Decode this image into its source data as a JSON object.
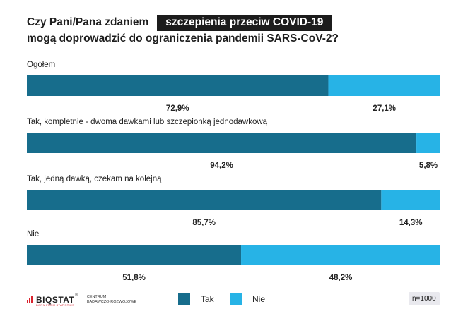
{
  "title": {
    "prefix": "Czy Pani/Pana zdaniem",
    "highlight": "szczepienia przeciw COVID-19",
    "line2": "mogą doprowadzić do ograniczenia pandemii SARS-CoV-2?"
  },
  "chart_data": {
    "type": "bar",
    "orientation": "horizontal-stacked-percent",
    "categories": [
      "Ogółem",
      "Tak, kompletnie - dwoma dawkami lub szczepionką jednodawkową",
      "Tak, jedną dawką, czekam na kolejną",
      "Nie"
    ],
    "series": [
      {
        "name": "Tak",
        "color": "#176d8c",
        "values": [
          72.9,
          94.2,
          85.7,
          51.8
        ],
        "labels": [
          "72,9%",
          "94,2%",
          "85,7%",
          "51,8%"
        ]
      },
      {
        "name": "Nie",
        "color": "#27b3e6",
        "values": [
          27.1,
          5.8,
          14.3,
          48.2
        ],
        "labels": [
          "27,1%",
          "5,8%",
          "14,3%",
          "48,2%"
        ]
      }
    ],
    "xlim": [
      0,
      100
    ],
    "legend_position": "bottom"
  },
  "footer": {
    "logo_name": "BIQSTAT",
    "logo_registered": "®",
    "logo_tagline": "BORN FROM STATISTICS",
    "logo_desc_line1": "CENTRUM",
    "logo_desc_line2": "BADAWCZO-ROZWOJOWE",
    "sample_size": "n=1000"
  }
}
